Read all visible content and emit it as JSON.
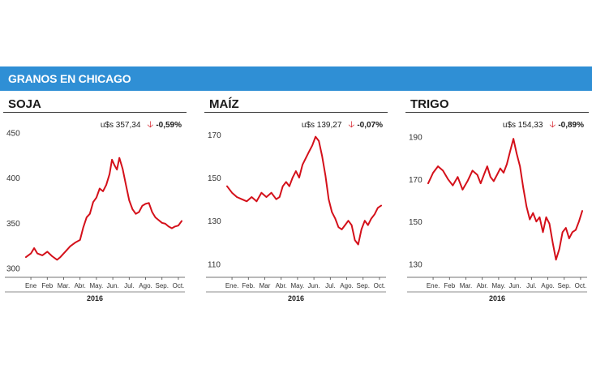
{
  "header": {
    "title": "GRANOS EN CHICAGO"
  },
  "colors": {
    "banner": "#2f8fd5",
    "series": "#d4101a",
    "down_arrow": "#d4101a"
  },
  "chart_data": [
    {
      "type": "line",
      "title": "SOJA",
      "price_label": "u$s 357,34",
      "change_label": "-0,59%",
      "direction": "down",
      "year_label": "2016",
      "months": [
        "Ene",
        "Feb",
        "Mar.",
        "Abr.",
        "May.",
        "Jun.",
        "Jul.",
        "Ago.",
        "Sep.",
        "Oct."
      ],
      "yticks": [
        300,
        350,
        400,
        450
      ],
      "ytick_labels": [
        "300",
        "350",
        "400",
        "450"
      ],
      "ylim": [
        295,
        455
      ],
      "xlim": [
        0,
        9.6
      ],
      "x": [
        0,
        0.3,
        0.5,
        0.7,
        1.0,
        1.3,
        1.6,
        1.9,
        2.1,
        2.4,
        2.7,
        3.0,
        3.3,
        3.5,
        3.7,
        3.9,
        4.1,
        4.3,
        4.5,
        4.7,
        4.9,
        5.1,
        5.25,
        5.4,
        5.55,
        5.7,
        5.9,
        6.1,
        6.3,
        6.5,
        6.7,
        6.9,
        7.1,
        7.3,
        7.5,
        7.7,
        7.9,
        8.1,
        8.3,
        8.5,
        8.7,
        8.9,
        9.1,
        9.3,
        9.5
      ],
      "values": [
        312,
        316,
        322,
        316,
        314,
        318,
        313,
        309,
        312,
        318,
        324,
        328,
        331,
        345,
        356,
        360,
        373,
        378,
        388,
        385,
        392,
        404,
        420,
        414,
        409,
        422,
        410,
        392,
        375,
        365,
        360,
        362,
        369,
        371,
        372,
        362,
        356,
        353,
        350,
        349,
        346,
        344,
        346,
        347,
        352
      ]
    },
    {
      "type": "line",
      "title": "MAÍZ",
      "price_label": "u$s 139,27",
      "change_label": "-0,07%",
      "direction": "down",
      "year_label": "2016",
      "months": [
        "Ene.",
        "Feb.",
        "Mar",
        "Abr.",
        "May.",
        "Jun.",
        "Jul.",
        "Ago.",
        "Sep.",
        "Oct."
      ],
      "yticks": [
        110,
        130,
        150,
        170
      ],
      "ytick_labels": [
        "110",
        "130",
        "150",
        "170"
      ],
      "ylim": [
        106,
        173
      ],
      "xlim": [
        0,
        9.6
      ],
      "x": [
        0,
        0.3,
        0.6,
        0.9,
        1.2,
        1.5,
        1.8,
        2.1,
        2.4,
        2.7,
        3.0,
        3.2,
        3.4,
        3.6,
        3.8,
        4.0,
        4.2,
        4.4,
        4.6,
        4.8,
        5.0,
        5.2,
        5.4,
        5.6,
        5.8,
        6.0,
        6.2,
        6.4,
        6.6,
        6.8,
        7.0,
        7.2,
        7.4,
        7.6,
        7.8,
        8.0,
        8.2,
        8.4,
        8.6,
        8.8,
        9.0,
        9.2,
        9.4
      ],
      "values": [
        146,
        143,
        141,
        140,
        139,
        141,
        139,
        143,
        141,
        143,
        140,
        141,
        146,
        148,
        146,
        150,
        153,
        150,
        156,
        159,
        162,
        165,
        169,
        167,
        160,
        151,
        140,
        134,
        131,
        127,
        126,
        128,
        130,
        128,
        121,
        119,
        126,
        130,
        128,
        131,
        133,
        136,
        137
      ]
    },
    {
      "type": "line",
      "title": "TRIGO",
      "price_label": "u$s 154,33",
      "change_label": "-0,89%",
      "direction": "down",
      "year_label": "2016",
      "months": [
        "Ene.",
        "Feb",
        "Mar.",
        "Abr.",
        "May.",
        "Jun.",
        "Jul.",
        "Ago.",
        "Sep.",
        "Oct."
      ],
      "yticks": [
        130,
        150,
        170,
        190
      ],
      "ytick_labels": [
        "130",
        "150",
        "170",
        "190"
      ],
      "ylim": [
        126,
        194
      ],
      "xlim": [
        0,
        9.6
      ],
      "x": [
        0,
        0.3,
        0.6,
        0.9,
        1.2,
        1.5,
        1.8,
        2.1,
        2.4,
        2.7,
        3.0,
        3.2,
        3.4,
        3.6,
        3.8,
        4.0,
        4.2,
        4.4,
        4.6,
        4.8,
        5.0,
        5.2,
        5.4,
        5.6,
        5.8,
        6.0,
        6.2,
        6.4,
        6.6,
        6.8,
        7.0,
        7.2,
        7.4,
        7.6,
        7.8,
        8.0,
        8.2,
        8.4,
        8.6,
        8.8,
        9.0,
        9.2,
        9.4
      ],
      "values": [
        168,
        173,
        176,
        174,
        170,
        167,
        171,
        165,
        169,
        174,
        172,
        168,
        172,
        176,
        171,
        169,
        172,
        175,
        173,
        177,
        183,
        189,
        182,
        176,
        166,
        157,
        151,
        154,
        150,
        152,
        145,
        152,
        149,
        140,
        132,
        137,
        145,
        147,
        142,
        145,
        146,
        150,
        155
      ]
    }
  ]
}
